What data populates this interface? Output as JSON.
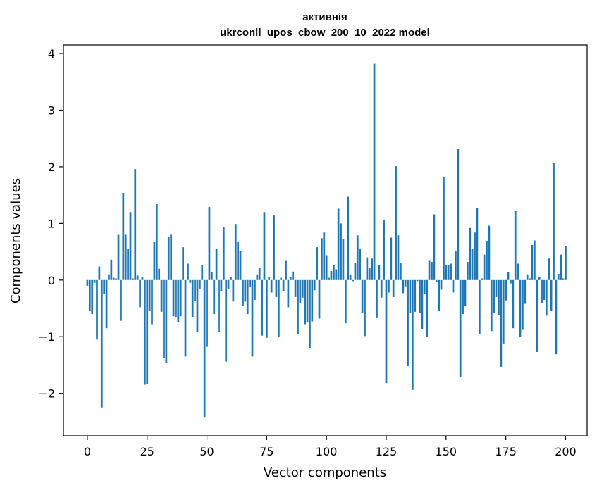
{
  "chart_data": {
    "type": "bar",
    "title_line1": "активнія",
    "title_line2": "ukrconll_upos_cbow_200_10_2022 model",
    "xlabel": "Vector components",
    "ylabel": "Components values",
    "bar_color": "#1f77b4",
    "xlim": [
      -10,
      209
    ],
    "ylim": [
      -2.75,
      4.15
    ],
    "x_ticks": [
      0,
      25,
      50,
      75,
      100,
      125,
      150,
      175,
      200
    ],
    "x_tick_labels": [
      "0",
      "25",
      "50",
      "75",
      "100",
      "125",
      "150",
      "175",
      "200"
    ],
    "y_ticks": [
      -2,
      -1,
      0,
      1,
      2,
      3,
      4
    ],
    "y_tick_labels": [
      "−2",
      "−1",
      "0",
      "1",
      "2",
      "3",
      "4"
    ],
    "grid": false,
    "values": [
      -0.1,
      -0.55,
      -0.6,
      -0.05,
      -1.05,
      0.24,
      -2.25,
      -0.25,
      -0.85,
      0.1,
      0.36,
      0.04,
      0.03,
      0.8,
      -0.72,
      1.54,
      0.8,
      0.55,
      1.2,
      0.03,
      1.96,
      0.08,
      -0.48,
      0.06,
      -1.85,
      -1.84,
      -0.55,
      -0.78,
      0.67,
      1.34,
      0.2,
      -0.56,
      -1.38,
      -1.47,
      0.77,
      0.8,
      -0.64,
      -0.65,
      -0.75,
      -0.64,
      0.58,
      -1.35,
      0.29,
      -0.05,
      -0.65,
      -0.37,
      -0.92,
      -0.15,
      0.27,
      -2.43,
      -1.18,
      1.29,
      0.14,
      -0.6,
      0.55,
      -0.92,
      -0.2,
      0.93,
      -1.44,
      -0.15,
      0.05,
      -0.38,
      0.99,
      0.67,
      0.52,
      -0.46,
      -0.38,
      -0.6,
      -0.12,
      -1.35,
      -0.35,
      0.1,
      0.22,
      -0.98,
      1.2,
      -1.02,
      0.05,
      -0.22,
      1.14,
      -0.3,
      -1.0,
      0.04,
      -0.2,
      0.34,
      -0.48,
      0.05,
      0.15,
      -0.3,
      -0.95,
      -0.4,
      -0.31,
      -0.78,
      -0.74,
      -1.2,
      -0.73,
      -0.18,
      0.58,
      -0.68,
      0.74,
      0.84,
      0.44,
      0.04,
      0.16,
      0.27,
      0.19,
      1.26,
      1.0,
      0.73,
      -0.76,
      1.47,
      0.1,
      -0.02,
      0.3,
      0.79,
      0.56,
      -0.58,
      -0.99,
      0.4,
      0.21,
      0.38,
      3.82,
      -0.66,
      0.27,
      -0.31,
      1.06,
      -1.82,
      -0.22,
      0.75,
      -0.3,
      2.01,
      0.79,
      0.3,
      -0.23,
      -0.11,
      -1.52,
      -0.58,
      -1.94,
      -0.56,
      -0.02,
      -0.58,
      -0.87,
      -0.24,
      -1.0,
      0.34,
      0.32,
      1.16,
      -0.04,
      -0.55,
      -0.17,
      1.82,
      0.27,
      0.26,
      0.29,
      -0.22,
      0.52,
      2.32,
      -1.71,
      -0.6,
      -0.45,
      0.32,
      0.92,
      0.55,
      0.84,
      1.27,
      -0.95,
      0.03,
      0.45,
      0.68,
      0.96,
      -0.9,
      -0.58,
      -0.3,
      -0.62,
      -1.53,
      -1.12,
      -0.36,
      0.14,
      -0.06,
      -0.85,
      1.22,
      0.29,
      -1.01,
      -0.88,
      -0.42,
      0.1,
      0.03,
      0.62,
      0.7,
      -1.27,
      0.06,
      -0.4,
      -0.35,
      -0.63,
      0.38,
      -0.55,
      2.07,
      -1.31,
      0.11,
      0.45,
      0.03,
      0.6
    ]
  }
}
